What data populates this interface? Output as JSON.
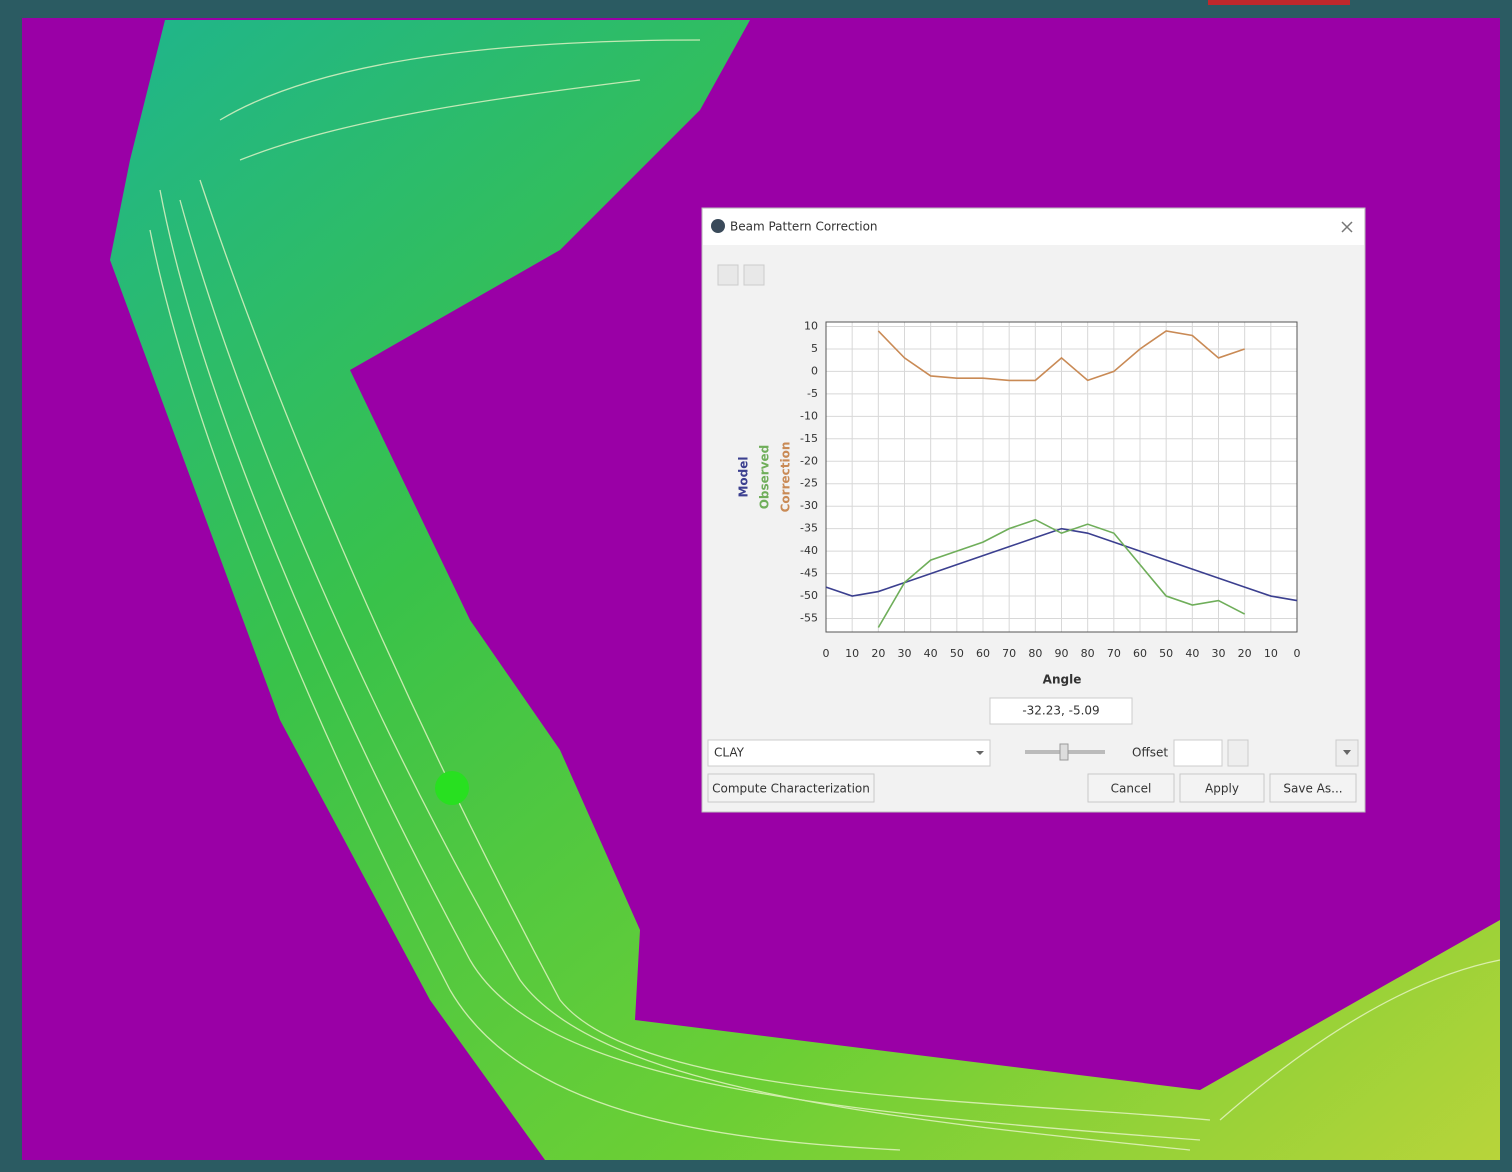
{
  "dialog": {
    "title": "Beam Pattern Correction",
    "coordinates": "-32.23, -5.09",
    "material": "CLAY",
    "offset_label": "Offset",
    "buttons": [
      "Compute Characterization",
      "Cancel",
      "Apply",
      "Save As..."
    ]
  },
  "chart_data": {
    "type": "line",
    "x_label": "Angle",
    "x": [
      -90,
      -80,
      -70,
      -60,
      -50,
      -40,
      -30,
      -20,
      -10,
      0,
      10,
      20,
      30,
      40,
      50,
      60,
      70,
      80,
      90
    ],
    "series": [
      {
        "name": "Model",
        "color": "#3b3f8f",
        "values": [
          -48,
          -50,
          -49,
          -47,
          -45,
          -43,
          -41,
          -39,
          -37,
          -35,
          -36,
          -38,
          -40,
          -42,
          -44,
          -46,
          -48,
          -50,
          -51
        ]
      },
      {
        "name": "Observed",
        "color": "#6fae5a",
        "values": [
          null,
          null,
          -57,
          -47,
          -42,
          -40,
          -38,
          -35,
          -33,
          -36,
          -34,
          -36,
          -43,
          -50,
          -52,
          -51,
          -54,
          null,
          null
        ]
      },
      {
        "name": "Correction",
        "color": "#c98a55",
        "values": [
          null,
          null,
          9,
          3,
          -1,
          -1.5,
          -1.5,
          -2,
          -2,
          3,
          -2,
          0,
          5,
          9,
          8,
          3,
          5,
          null,
          null
        ]
      }
    ],
    "xlim": [
      -90,
      90
    ],
    "ylim": [
      -58,
      11
    ],
    "xticks": [
      {
        "value": -90,
        "label": "0"
      },
      {
        "value": -80,
        "label": "10"
      },
      {
        "value": -70,
        "label": "20"
      },
      {
        "value": -60,
        "label": "30"
      },
      {
        "value": -50,
        "label": "40"
      },
      {
        "value": -40,
        "label": "50"
      },
      {
        "value": -30,
        "label": "60"
      },
      {
        "value": -20,
        "label": "70"
      },
      {
        "value": -10,
        "label": "80"
      },
      {
        "value": 0,
        "label": "90"
      },
      {
        "value": 10,
        "label": "80"
      },
      {
        "value": 20,
        "label": "70"
      },
      {
        "value": 30,
        "label": "60"
      },
      {
        "value": 40,
        "label": "50"
      },
      {
        "value": 50,
        "label": "40"
      },
      {
        "value": 60,
        "label": "30"
      },
      {
        "value": 70,
        "label": "20"
      },
      {
        "value": 80,
        "label": "10"
      },
      {
        "value": 90,
        "label": "0"
      }
    ],
    "yticks": [
      10,
      5,
      0,
      -5,
      -10,
      -15,
      -20,
      -25,
      -30,
      -35,
      -40,
      -45,
      -50,
      -55
    ],
    "grid": true
  }
}
